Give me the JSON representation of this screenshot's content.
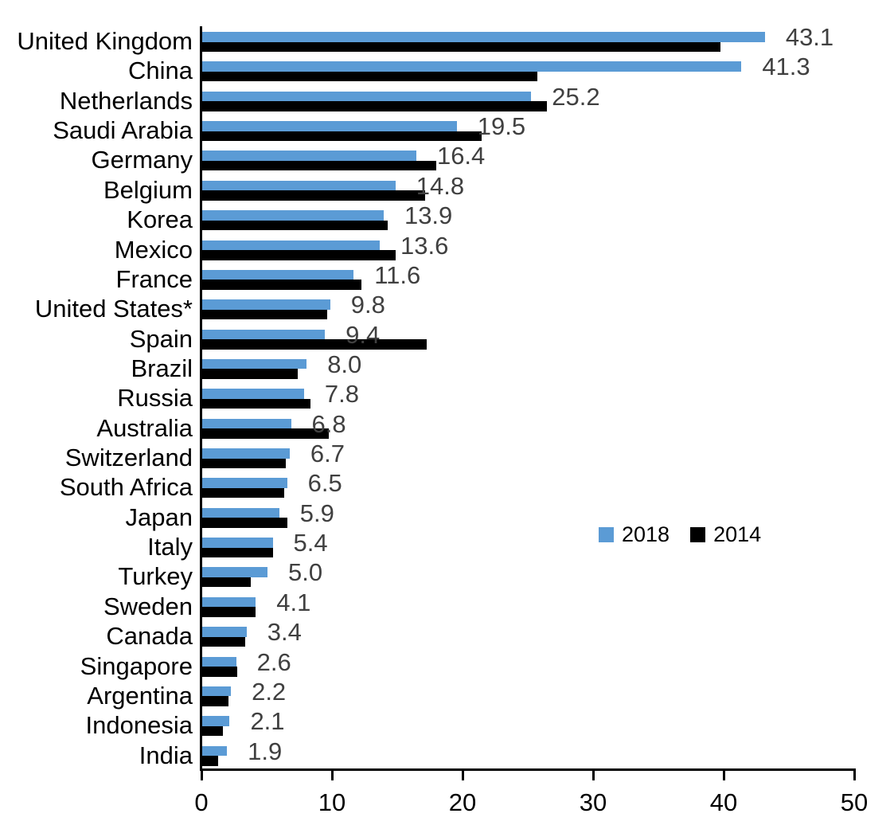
{
  "chart_data": {
    "type": "bar",
    "orientation": "horizontal",
    "title": "",
    "xlabel": "",
    "ylabel": "",
    "xlim": [
      0,
      50
    ],
    "x_ticks": [
      0,
      10,
      20,
      30,
      40,
      50
    ],
    "grid": false,
    "legend_position": "middle-right",
    "value_labels_series": "2018",
    "categories": [
      "United Kingdom",
      "China",
      "Netherlands",
      "Saudi Arabia",
      "Germany",
      "Belgium",
      "Korea",
      "Mexico",
      "France",
      "United States*",
      "Spain",
      "Brazil",
      "Russia",
      "Australia",
      "Switzerland",
      "South Africa",
      "Japan",
      "Italy",
      "Turkey",
      "Sweden",
      "Canada",
      "Singapore",
      "Argentina",
      "Indonesia",
      "India"
    ],
    "series": [
      {
        "name": "2018",
        "color": "#5B9BD5",
        "values": [
          43.1,
          41.3,
          25.2,
          19.5,
          16.4,
          14.8,
          13.9,
          13.6,
          11.6,
          9.8,
          9.4,
          8.0,
          7.8,
          6.8,
          6.7,
          6.5,
          5.9,
          5.4,
          5.0,
          4.1,
          3.4,
          2.6,
          2.2,
          2.1,
          1.9
        ]
      },
      {
        "name": "2014",
        "color": "#000000",
        "values": [
          39.7,
          25.7,
          26.4,
          21.4,
          17.9,
          17.1,
          14.2,
          14.8,
          12.2,
          9.6,
          17.2,
          7.3,
          8.3,
          9.7,
          6.4,
          6.3,
          6.5,
          5.4,
          3.7,
          4.1,
          3.3,
          2.7,
          2.0,
          1.6,
          1.2
        ]
      }
    ]
  },
  "colors": {
    "background": "#FFFFFF",
    "axis": "#000000",
    "value_label": "#404040",
    "bar_2018": "#5B9BD5",
    "bar_2014": "#000000"
  }
}
